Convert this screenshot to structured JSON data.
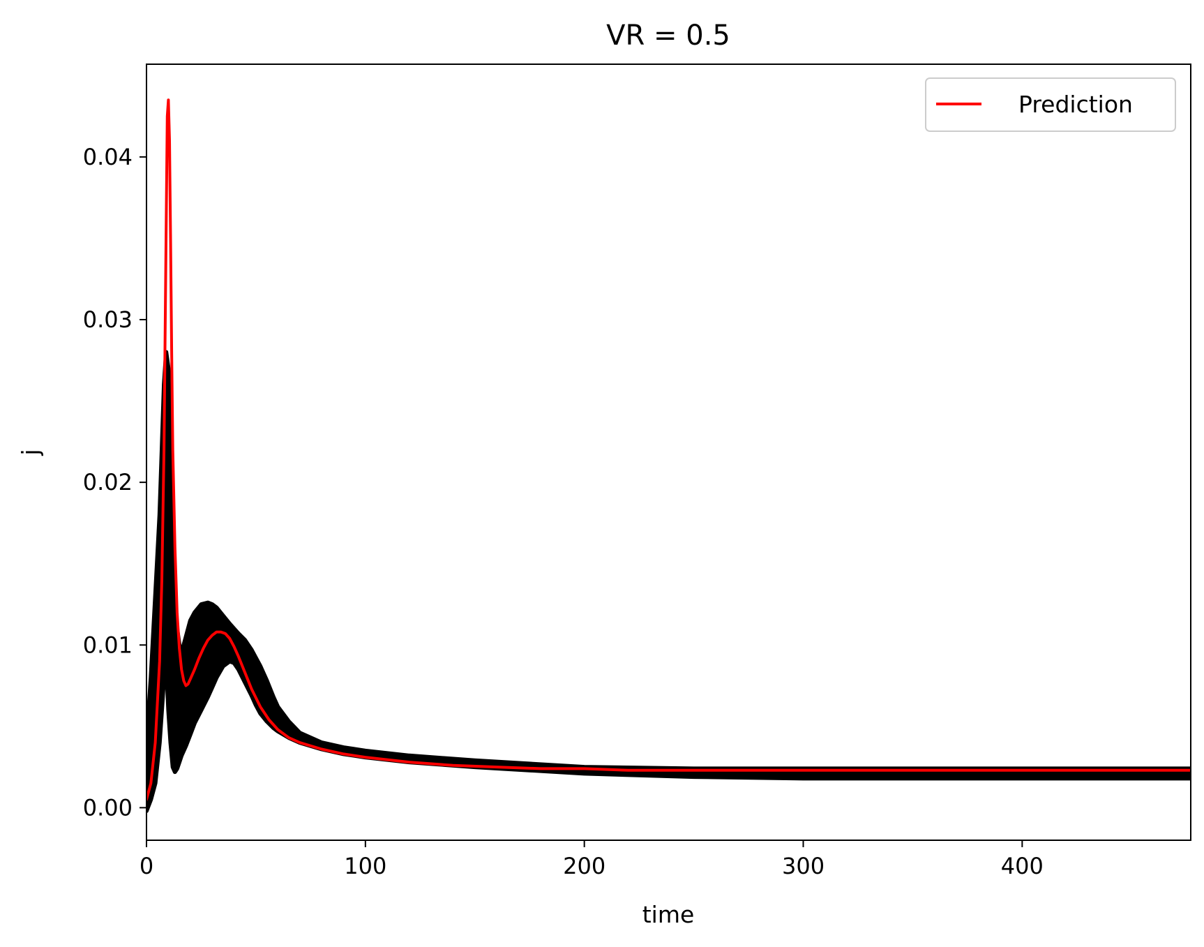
{
  "chart_data": {
    "type": "line",
    "title": "VR = 0.5",
    "xlabel": "time",
    "ylabel": "j",
    "xlim": [
      0,
      477
    ],
    "ylim": [
      -0.002,
      0.0457
    ],
    "xticks": [
      0,
      100,
      200,
      300,
      400
    ],
    "xtick_labels": [
      "0",
      "100",
      "200",
      "300",
      "400"
    ],
    "yticks": [
      0.0,
      0.01,
      0.02,
      0.03,
      0.04
    ],
    "ytick_labels": [
      "0.00",
      "0.01",
      "0.02",
      "0.03",
      "0.04"
    ],
    "grid": false,
    "legend": {
      "position": "top-right",
      "entries": [
        "Prediction"
      ]
    },
    "series": [
      {
        "name": "Prediction",
        "style": "line",
        "color": "#ff0000",
        "x": [
          0,
          2,
          4,
          6,
          7,
          8,
          8.8,
          9.5,
          10,
          10.5,
          11,
          11.5,
          12,
          13,
          14,
          15,
          16,
          17,
          18,
          19,
          20,
          22,
          24,
          26,
          28,
          30,
          32,
          34,
          36,
          38,
          40,
          42,
          45,
          48,
          52,
          56,
          60,
          65,
          70,
          80,
          90,
          100,
          120,
          140,
          160,
          180,
          200,
          220,
          240,
          260,
          280,
          300,
          350,
          400,
          450,
          477
        ],
        "y": [
          0.0005,
          0.0015,
          0.004,
          0.009,
          0.014,
          0.022,
          0.033,
          0.0425,
          0.0435,
          0.041,
          0.035,
          0.028,
          0.022,
          0.016,
          0.012,
          0.0098,
          0.0085,
          0.0078,
          0.0075,
          0.0076,
          0.0079,
          0.0085,
          0.0092,
          0.0098,
          0.0103,
          0.0106,
          0.0108,
          0.0108,
          0.0107,
          0.0104,
          0.0099,
          0.0093,
          0.0083,
          0.0073,
          0.0062,
          0.0054,
          0.0048,
          0.0043,
          0.004,
          0.0036,
          0.0033,
          0.0031,
          0.0028,
          0.0026,
          0.0025,
          0.0024,
          0.0024,
          0.0023,
          0.0023,
          0.0023,
          0.0023,
          0.0023,
          0.0023,
          0.0023,
          0.0023,
          0.0023
        ]
      },
      {
        "name": "",
        "style": "band",
        "color": "#000000",
        "x": [
          0,
          2,
          4,
          6,
          7,
          8,
          9,
          10,
          11,
          12,
          13,
          14,
          15,
          16,
          18,
          20,
          22,
          25,
          28,
          30,
          32,
          35,
          38,
          40,
          42,
          45,
          48,
          50,
          52,
          55,
          58,
          60,
          65,
          70,
          80,
          90,
          100,
          120,
          150,
          200,
          250,
          300,
          350,
          400,
          477
        ],
        "upper": [
          0.004,
          0.008,
          0.013,
          0.018,
          0.022,
          0.026,
          0.028,
          0.027,
          0.022,
          0.017,
          0.013,
          0.011,
          0.01,
          0.0095,
          0.0105,
          0.0115,
          0.012,
          0.0125,
          0.0126,
          0.0125,
          0.0123,
          0.0118,
          0.0113,
          0.011,
          0.0107,
          0.0103,
          0.0097,
          0.0092,
          0.0087,
          0.0078,
          0.0068,
          0.0062,
          0.0053,
          0.0046,
          0.004,
          0.0037,
          0.0035,
          0.0032,
          0.0029,
          0.0025,
          0.0024,
          0.0024,
          0.0024,
          0.0024,
          0.0024
        ],
        "lower": [
          -0.0002,
          0.0005,
          0.0015,
          0.004,
          0.006,
          0.008,
          0.009,
          0.006,
          0.004,
          0.0025,
          0.0022,
          0.0024,
          0.0028,
          0.0032,
          0.0038,
          0.0045,
          0.0052,
          0.006,
          0.0068,
          0.0074,
          0.008,
          0.0087,
          0.009,
          0.0089,
          0.0085,
          0.0077,
          0.0069,
          0.0063,
          0.0058,
          0.0053,
          0.0049,
          0.0047,
          0.0043,
          0.004,
          0.0036,
          0.0033,
          0.0031,
          0.0028,
          0.0025,
          0.0021,
          0.0019,
          0.0018,
          0.0018,
          0.0018,
          0.0018
        ]
      }
    ]
  }
}
